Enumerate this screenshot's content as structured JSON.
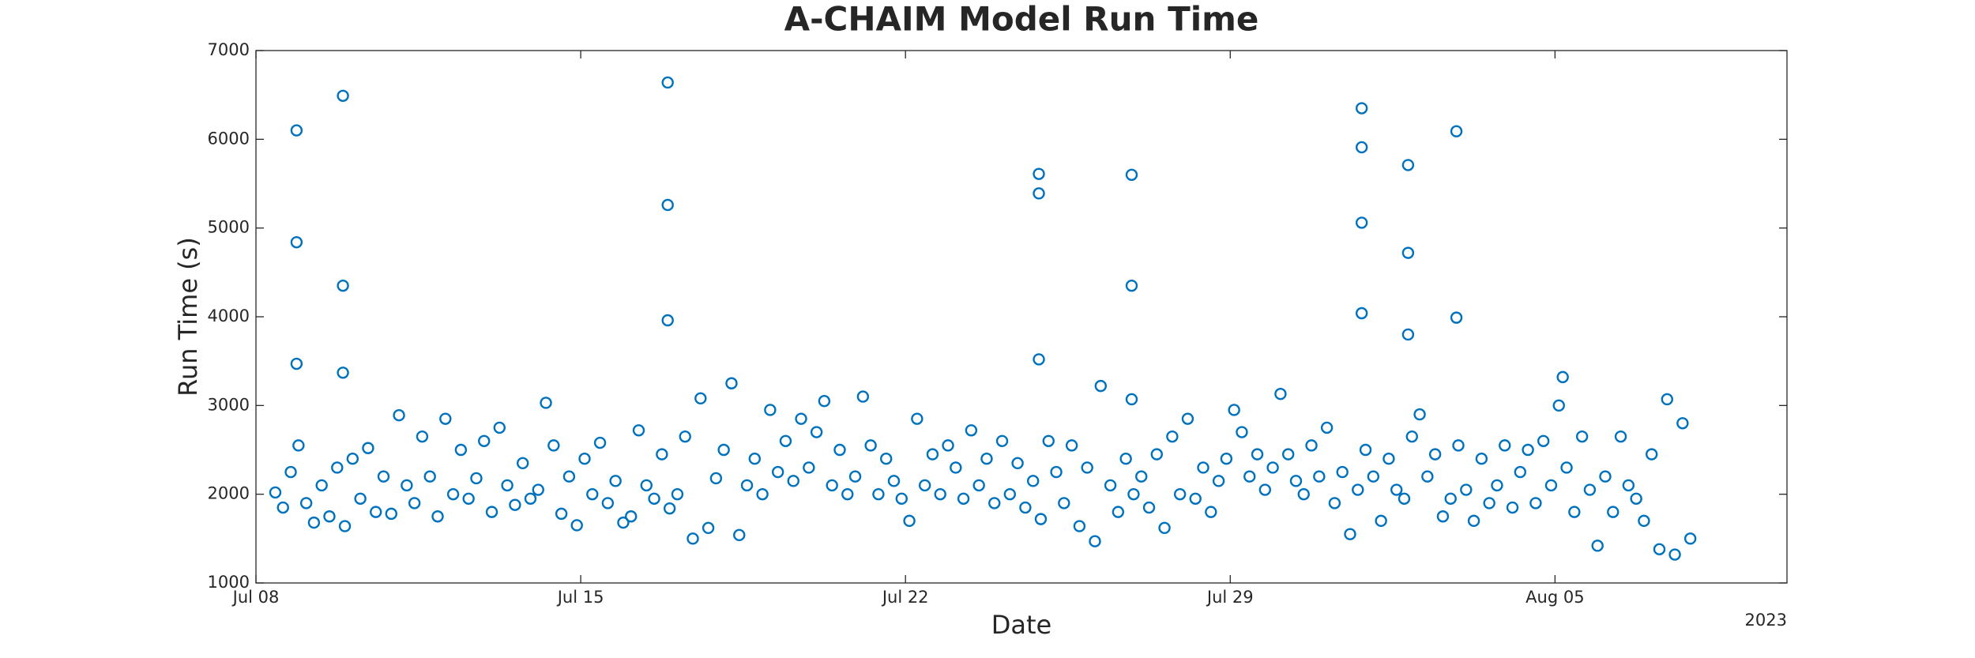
{
  "chart_data": {
    "type": "scatter",
    "title": "A-CHAIM Model Run Time",
    "xlabel": "Date",
    "ylabel": "Run Time (s)",
    "x_year_label": "2023",
    "color": "#0072bd",
    "marker": "open-circle",
    "grid": false,
    "xlim": [
      "2023-07-08T00:00",
      "2023-08-10T00:00"
    ],
    "xticks": [
      {
        "value": "2023-07-08T00:00",
        "label": "Jul 08"
      },
      {
        "value": "2023-07-15T00:00",
        "label": "Jul 15"
      },
      {
        "value": "2023-07-22T00:00",
        "label": "Jul 22"
      },
      {
        "value": "2023-07-29T00:00",
        "label": "Jul 29"
      },
      {
        "value": "2023-08-05T00:00",
        "label": "Aug 05"
      }
    ],
    "ylim": [
      1000,
      7000
    ],
    "yticks": [
      1000,
      2000,
      3000,
      4000,
      5000,
      6000,
      7000
    ],
    "x": [
      "2023-07-08T10:00",
      "2023-07-08T14:00",
      "2023-07-08T18:00",
      "2023-07-08T21:00",
      "2023-07-08T21:00",
      "2023-07-08T21:00",
      "2023-07-08T22:00",
      "2023-07-09T02:00",
      "2023-07-09T06:00",
      "2023-07-09T10:00",
      "2023-07-09T14:00",
      "2023-07-09T18:00",
      "2023-07-09T21:00",
      "2023-07-09T21:00",
      "2023-07-09T21:00",
      "2023-07-09T22:00",
      "2023-07-10T02:00",
      "2023-07-10T06:00",
      "2023-07-10T10:00",
      "2023-07-10T14:00",
      "2023-07-10T18:00",
      "2023-07-10T22:00",
      "2023-07-11T02:00",
      "2023-07-11T06:00",
      "2023-07-11T10:00",
      "2023-07-11T14:00",
      "2023-07-11T18:00",
      "2023-07-11T22:00",
      "2023-07-12T02:00",
      "2023-07-12T06:00",
      "2023-07-12T10:00",
      "2023-07-12T14:00",
      "2023-07-12T18:00",
      "2023-07-12T22:00",
      "2023-07-13T02:00",
      "2023-07-13T06:00",
      "2023-07-13T10:00",
      "2023-07-13T14:00",
      "2023-07-13T18:00",
      "2023-07-13T22:00",
      "2023-07-14T02:00",
      "2023-07-14T06:00",
      "2023-07-14T10:00",
      "2023-07-14T14:00",
      "2023-07-14T18:00",
      "2023-07-14T22:00",
      "2023-07-15T02:00",
      "2023-07-15T06:00",
      "2023-07-15T10:00",
      "2023-07-15T14:00",
      "2023-07-15T18:00",
      "2023-07-15T22:00",
      "2023-07-16T02:00",
      "2023-07-16T06:00",
      "2023-07-16T10:00",
      "2023-07-16T14:00",
      "2023-07-16T18:00",
      "2023-07-16T21:00",
      "2023-07-16T21:00",
      "2023-07-16T21:00",
      "2023-07-16T22:00",
      "2023-07-17T02:00",
      "2023-07-17T06:00",
      "2023-07-17T10:00",
      "2023-07-17T14:00",
      "2023-07-17T18:00",
      "2023-07-17T22:00",
      "2023-07-18T02:00",
      "2023-07-18T06:00",
      "2023-07-18T10:00",
      "2023-07-18T14:00",
      "2023-07-18T18:00",
      "2023-07-18T22:00",
      "2023-07-19T02:00",
      "2023-07-19T06:00",
      "2023-07-19T10:00",
      "2023-07-19T14:00",
      "2023-07-19T18:00",
      "2023-07-19T22:00",
      "2023-07-20T02:00",
      "2023-07-20T06:00",
      "2023-07-20T10:00",
      "2023-07-20T14:00",
      "2023-07-20T18:00",
      "2023-07-20T22:00",
      "2023-07-21T02:00",
      "2023-07-21T06:00",
      "2023-07-21T10:00",
      "2023-07-21T14:00",
      "2023-07-21T18:00",
      "2023-07-21T22:00",
      "2023-07-22T02:00",
      "2023-07-22T06:00",
      "2023-07-22T10:00",
      "2023-07-22T14:00",
      "2023-07-22T18:00",
      "2023-07-22T22:00",
      "2023-07-23T02:00",
      "2023-07-23T06:00",
      "2023-07-23T10:00",
      "2023-07-23T14:00",
      "2023-07-23T18:00",
      "2023-07-23T22:00",
      "2023-07-24T02:00",
      "2023-07-24T06:00",
      "2023-07-24T10:00",
      "2023-07-24T14:00",
      "2023-07-24T18:00",
      "2023-07-24T21:00",
      "2023-07-24T21:00",
      "2023-07-24T21:00",
      "2023-07-24T22:00",
      "2023-07-25T02:00",
      "2023-07-25T06:00",
      "2023-07-25T10:00",
      "2023-07-25T14:00",
      "2023-07-25T18:00",
      "2023-07-25T22:00",
      "2023-07-26T02:00",
      "2023-07-26T05:00",
      "2023-07-26T10:00",
      "2023-07-26T14:00",
      "2023-07-26T18:00",
      "2023-07-26T21:00",
      "2023-07-26T21:00",
      "2023-07-26T21:00",
      "2023-07-26T22:00",
      "2023-07-27T02:00",
      "2023-07-27T06:00",
      "2023-07-27T10:00",
      "2023-07-27T14:00",
      "2023-07-27T18:00",
      "2023-07-27T22:00",
      "2023-07-28T02:00",
      "2023-07-28T06:00",
      "2023-07-28T10:00",
      "2023-07-28T14:00",
      "2023-07-28T18:00",
      "2023-07-28T22:00",
      "2023-07-29T02:00",
      "2023-07-29T06:00",
      "2023-07-29T10:00",
      "2023-07-29T14:00",
      "2023-07-29T18:00",
      "2023-07-29T22:00",
      "2023-07-30T02:00",
      "2023-07-30T06:00",
      "2023-07-30T10:00",
      "2023-07-30T14:00",
      "2023-07-30T18:00",
      "2023-07-30T22:00",
      "2023-07-31T02:00",
      "2023-07-31T06:00",
      "2023-07-31T10:00",
      "2023-07-31T14:00",
      "2023-07-31T18:00",
      "2023-07-31T20:00",
      "2023-07-31T20:00",
      "2023-07-31T20:00",
      "2023-07-31T20:00",
      "2023-07-31T22:00",
      "2023-08-01T02:00",
      "2023-08-01T06:00",
      "2023-08-01T10:00",
      "2023-08-01T14:00",
      "2023-08-01T18:00",
      "2023-08-01T20:00",
      "2023-08-01T20:00",
      "2023-08-01T20:00",
      "2023-08-01T22:00",
      "2023-08-02T02:00",
      "2023-08-02T06:00",
      "2023-08-02T10:00",
      "2023-08-02T14:00",
      "2023-08-02T18:00",
      "2023-08-02T21:00",
      "2023-08-02T21:00",
      "2023-08-02T22:00",
      "2023-08-03T02:00",
      "2023-08-03T06:00",
      "2023-08-03T10:00",
      "2023-08-03T14:00",
      "2023-08-03T18:00",
      "2023-08-03T22:00",
      "2023-08-04T02:00",
      "2023-08-04T06:00",
      "2023-08-04T10:00",
      "2023-08-04T14:00",
      "2023-08-04T18:00",
      "2023-08-04T22:00",
      "2023-08-05T02:00",
      "2023-08-05T04:00",
      "2023-08-05T06:00",
      "2023-08-05T10:00",
      "2023-08-05T14:00",
      "2023-08-05T18:00",
      "2023-08-05T22:00",
      "2023-08-06T02:00",
      "2023-08-06T06:00",
      "2023-08-06T10:00",
      "2023-08-06T14:00",
      "2023-08-06T18:00",
      "2023-08-06T22:00",
      "2023-08-07T02:00",
      "2023-08-07T06:00",
      "2023-08-07T10:00",
      "2023-08-07T14:00",
      "2023-08-07T18:00",
      "2023-08-07T22:00"
    ],
    "values": [
      2020,
      1850,
      2250,
      6100,
      4840,
      3470,
      2550,
      1900,
      1680,
      2100,
      1750,
      2300,
      6490,
      4350,
      3370,
      1640,
      2400,
      1950,
      2520,
      1800,
      2200,
      1780,
      2890,
      2100,
      1900,
      2650,
      2200,
      1750,
      2850,
      2000,
      2500,
      1950,
      2180,
      2600,
      1800,
      2750,
      2100,
      1880,
      2350,
      1950,
      2050,
      3030,
      2550,
      1780,
      2200,
      1650,
      2400,
      2000,
      2580,
      1900,
      2150,
      1680,
      1750,
      2720,
      2100,
      1950,
      2450,
      6640,
      5260,
      3960,
      1840,
      2000,
      2650,
      1500,
      3080,
      1620,
      2180,
      2500,
      3250,
      1540,
      2100,
      2400,
      2000,
      2950,
      2250,
      2600,
      2150,
      2850,
      2300,
      2700,
      3050,
      2100,
      2500,
      2000,
      2200,
      3100,
      2550,
      2000,
      2400,
      2150,
      1950,
      1700,
      2850,
      2100,
      2450,
      2000,
      2550,
      2300,
      1950,
      2720,
      2100,
      2400,
      1900,
      2600,
      2000,
      2350,
      1850,
      2150,
      5610,
      5390,
      3520,
      1720,
      2600,
      2250,
      1900,
      2550,
      1640,
      2300,
      1470,
      3220,
      2100,
      1800,
      2400,
      5600,
      4350,
      3070,
      2000,
      2200,
      1850,
      2450,
      1620,
      2650,
      2000,
      2850,
      1950,
      2300,
      1800,
      2150,
      2400,
      2950,
      2700,
      2200,
      2450,
      2050,
      2300,
      3130,
      2450,
      2150,
      2000,
      2550,
      2200,
      2750,
      1900,
      2250,
      1550,
      2050,
      6350,
      5910,
      5060,
      4040,
      2500,
      2200,
      1700,
      2400,
      2050,
      1950,
      5710,
      4720,
      3800,
      2650,
      2900,
      2200,
      2450,
      1750,
      1950,
      6090,
      3990,
      2550,
      2050,
      1700,
      2400,
      1900,
      2100,
      2550,
      1850,
      2250,
      2500,
      1900,
      2600,
      2100,
      3000,
      3320,
      2300,
      1800,
      2650,
      2050,
      1420,
      2200,
      1800,
      2650,
      2100,
      1950,
      1700,
      2450,
      1380,
      3070,
      1320,
      2800,
      1500
    ]
  }
}
